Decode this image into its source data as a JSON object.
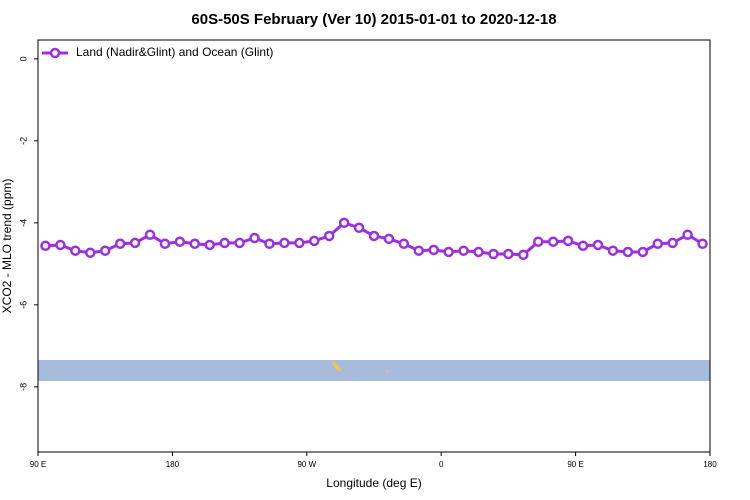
{
  "chart_data": {
    "type": "line",
    "title": "60S-50S February (Ver 10)   2015-01-01 to 2020-12-18",
    "xlabel": "Longitude (deg E)",
    "ylabel": "XCO2 - MLO trend (ppm)",
    "xlim": [
      90,
      540
    ],
    "xticks": [
      {
        "value": 90,
        "label": "90 E"
      },
      180,
      {
        "value": 270,
        "label": "90 W"
      },
      {
        "value": 360,
        "label": "0"
      },
      {
        "value": 450,
        "label": "90 E"
      },
      {
        "value": 540,
        "label": "180"
      }
    ],
    "ylim": [
      -9.59,
      0.46
    ],
    "yticks": [
      0,
      -2,
      -4,
      -6,
      -8
    ],
    "legend": "upper left",
    "series": [
      {
        "name": "Land (Nadir&Glint) and Ocean (Glint)",
        "color": "#9b30e0",
        "x": [
          95,
          105,
          115,
          125,
          135,
          145,
          155,
          165,
          175,
          185,
          195,
          205,
          215,
          225,
          235,
          245,
          255,
          265,
          275,
          285,
          295,
          305,
          315,
          325,
          335,
          345,
          355,
          365,
          375,
          385,
          395,
          405,
          415,
          425,
          435,
          445,
          455,
          465,
          475,
          485,
          495,
          505,
          515,
          525,
          535
        ],
        "values": [
          -4.56,
          -4.54,
          -4.68,
          -4.73,
          -4.68,
          -4.51,
          -4.49,
          -4.29,
          -4.51,
          -4.46,
          -4.51,
          -4.54,
          -4.49,
          -4.49,
          -4.37,
          -4.51,
          -4.49,
          -4.49,
          -4.44,
          -4.32,
          -4.0,
          -4.12,
          -4.32,
          -4.39,
          -4.51,
          -4.68,
          -4.66,
          -4.71,
          -4.68,
          -4.71,
          -4.76,
          -4.76,
          -4.78,
          -4.46,
          -4.46,
          -4.44,
          -4.56,
          -4.54,
          -4.68,
          -4.71,
          -4.71,
          -4.51,
          -4.49,
          -4.29,
          -4.51
        ]
      }
    ]
  }
}
